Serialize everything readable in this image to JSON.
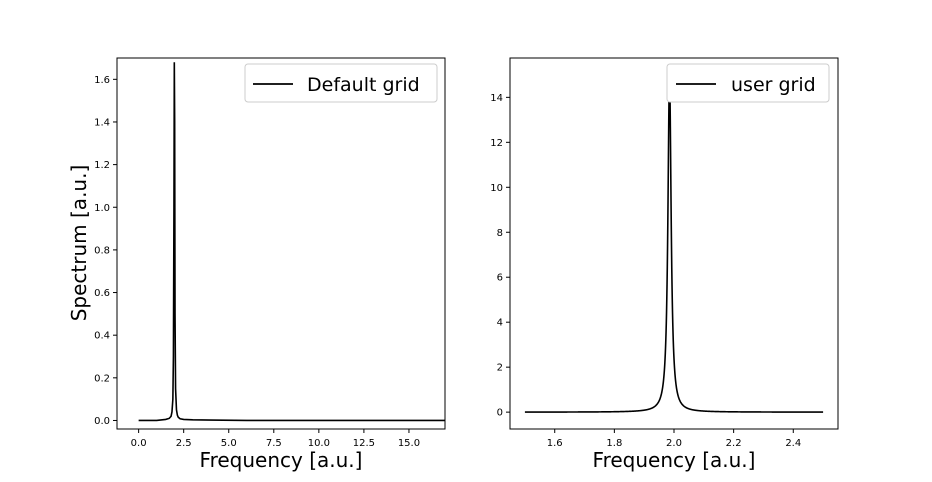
{
  "chart_data": [
    {
      "type": "line",
      "title": "",
      "xlabel": "Frequency [a.u.]",
      "ylabel": "Spectrum [a.u.]",
      "xlim": [
        -1.2,
        17.0
      ],
      "ylim": [
        -0.04,
        1.7
      ],
      "xticks": [
        0.0,
        2.5,
        5.0,
        7.5,
        10.0,
        12.5,
        15.0
      ],
      "xtick_labels": [
        "0.0",
        "2.5",
        "5.0",
        "7.5",
        "10.0",
        "12.5",
        "15.0"
      ],
      "yticks": [
        0.0,
        0.2,
        0.4,
        0.6,
        0.8,
        1.0,
        1.2,
        1.4,
        1.6
      ],
      "ytick_labels": [
        "0.0",
        "0.2",
        "0.4",
        "0.6",
        "0.8",
        "1.0",
        "1.2",
        "1.4",
        "1.6"
      ],
      "grid": false,
      "legend_position": "top-right",
      "series": [
        {
          "name": "Default grid",
          "color": "#000000",
          "x": [
            0.0,
            1.0,
            1.5,
            1.7,
            1.8,
            1.85,
            1.9,
            1.93,
            1.96,
            1.98,
            2.0,
            2.02,
            2.05,
            2.1,
            2.15,
            2.2,
            2.3,
            2.5,
            3.0,
            4.0,
            6.0,
            10.0,
            15.0,
            17.0
          ],
          "y": [
            0.0,
            0.0,
            0.005,
            0.01,
            0.02,
            0.04,
            0.1,
            0.3,
            1.0,
            1.68,
            1.4,
            0.5,
            0.15,
            0.05,
            0.025,
            0.015,
            0.008,
            0.005,
            0.003,
            0.002,
            0.0,
            0.0,
            0.0,
            0.0
          ]
        }
      ]
    },
    {
      "type": "line",
      "title": "",
      "xlabel": "Frequency [a.u.]",
      "ylabel": "",
      "xlim": [
        1.45,
        2.55
      ],
      "ylim": [
        -0.75,
        15.75
      ],
      "xticks": [
        1.6,
        1.8,
        2.0,
        2.2,
        2.4
      ],
      "xtick_labels": [
        "1.6",
        "1.8",
        "2.0",
        "2.2",
        "2.4"
      ],
      "yticks": [
        0,
        2,
        4,
        6,
        8,
        10,
        12,
        14
      ],
      "ytick_labels": [
        "0",
        "2",
        "4",
        "6",
        "8",
        "10",
        "12",
        "14"
      ],
      "grid": false,
      "legend_position": "top-right",
      "series": [
        {
          "name": "user grid",
          "color": "#000000",
          "peak": {
            "x0": 1.985,
            "amplitude": 15.0,
            "gamma": 0.0065
          },
          "x_range": [
            1.5,
            2.5
          ]
        }
      ]
    }
  ]
}
